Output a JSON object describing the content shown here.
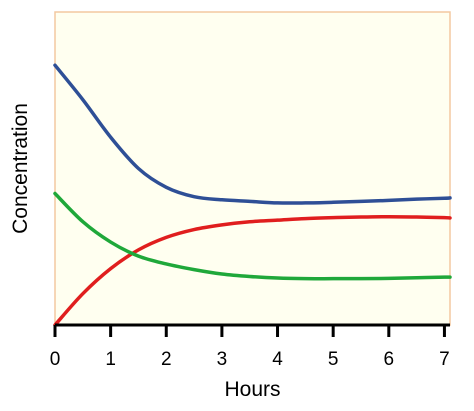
{
  "chart_data": {
    "type": "line",
    "title": "",
    "xlabel": "Hours",
    "ylabel": "Concentration",
    "xlim": [
      0,
      7.1
    ],
    "ylim": [
      0,
      1
    ],
    "x_ticks": [
      "0",
      "1",
      "2",
      "3",
      "4",
      "5",
      "6",
      "7"
    ],
    "y_ticks": [],
    "grid": false,
    "legend": "none",
    "plot_background": "#fffff0",
    "plot_border": "#f4c9a0",
    "series": [
      {
        "color": "#2e4f96",
        "x": [
          0,
          0.5,
          1,
          1.5,
          2,
          2.5,
          3,
          3.5,
          4,
          4.5,
          5,
          5.5,
          6,
          6.5,
          7,
          7.1
        ],
        "y": [
          0.83,
          0.72,
          0.6,
          0.5,
          0.44,
          0.41,
          0.4,
          0.395,
          0.39,
          0.39,
          0.392,
          0.395,
          0.398,
          0.402,
          0.405,
          0.406
        ]
      },
      {
        "color": "#e01e1e",
        "x": [
          0,
          0.5,
          1,
          1.5,
          2,
          2.5,
          3,
          3.5,
          4,
          4.5,
          5,
          5.5,
          6,
          6.5,
          7,
          7.1
        ],
        "y": [
          0.0,
          0.1,
          0.18,
          0.24,
          0.28,
          0.305,
          0.32,
          0.33,
          0.335,
          0.34,
          0.343,
          0.345,
          0.346,
          0.345,
          0.343,
          0.342
        ]
      },
      {
        "color": "#1fa83a",
        "x": [
          0,
          0.5,
          1,
          1.5,
          2,
          2.5,
          3,
          3.5,
          4,
          4.5,
          5,
          5.5,
          6,
          6.5,
          7,
          7.1
        ],
        "y": [
          0.42,
          0.33,
          0.265,
          0.22,
          0.195,
          0.177,
          0.163,
          0.155,
          0.15,
          0.148,
          0.148,
          0.148,
          0.149,
          0.151,
          0.153,
          0.153
        ]
      }
    ]
  }
}
